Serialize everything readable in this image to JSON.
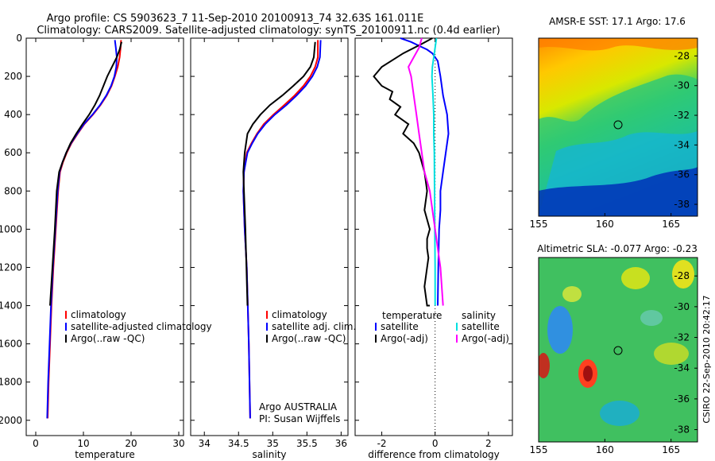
{
  "figure": {
    "title_line1": "Argo profile: CS 5903623_7 11-Sep-2010 20100913_74 32.63S 161.011E",
    "title_line2": "Climatology: CARS2009. Satellite-adjusted climatology: synTS_20100911.nc (0.4d earlier)",
    "credit": "CSIRO 22-Sep-2010 20:42:17",
    "argo_label": "Argo AUSTRALIA",
    "pi_label": "PI: Susan Wijffels"
  },
  "chart_data": [
    {
      "id": "temperature",
      "type": "line",
      "xlabel": "temperature",
      "ylabel": "",
      "xlim": [
        -2,
        31
      ],
      "ylim": [
        2080,
        0
      ],
      "xticks": [
        0,
        10,
        20,
        30
      ],
      "yticks": [
        0,
        200,
        400,
        600,
        800,
        1000,
        1200,
        1400,
        1600,
        1800,
        2000
      ],
      "legend": [
        "climatology",
        "satellite-adjusted climatology",
        "Argo(..raw -QC)"
      ],
      "series": [
        {
          "name": "climatology",
          "color": "#ff0000",
          "x": [
            17.9,
            17.8,
            17.6,
            17.2,
            16.6,
            15.9,
            14.9,
            13.6,
            12.0,
            10.2,
            8.8,
            7.5,
            6.5,
            5.7,
            5.1,
            4.7,
            4.2,
            3.7,
            3.3,
            3.0,
            2.7,
            2.5
          ],
          "y": [
            10,
            50,
            100,
            150,
            200,
            250,
            300,
            350,
            400,
            450,
            500,
            550,
            600,
            650,
            700,
            800,
            1000,
            1200,
            1400,
            1600,
            1800,
            1990
          ]
        },
        {
          "name": "satellite-adjusted climatology",
          "color": "#0000ff",
          "x": [
            16.6,
            16.8,
            17.0,
            16.9,
            16.5,
            15.8,
            14.8,
            13.5,
            11.9,
            10.1,
            8.7,
            7.4,
            6.4,
            5.6,
            5.0,
            4.6,
            4.1,
            3.6,
            3.2,
            2.9,
            2.6,
            2.4
          ],
          "y": [
            10,
            50,
            100,
            150,
            200,
            250,
            300,
            350,
            400,
            450,
            500,
            550,
            600,
            650,
            700,
            800,
            1000,
            1200,
            1400,
            1600,
            1800,
            1990
          ]
        },
        {
          "name": "Argo(..raw -QC)",
          "color": "#000000",
          "x": [
            18.0,
            17.6,
            17.0,
            16.0,
            15.0,
            14.2,
            13.4,
            12.4,
            11.2,
            9.8,
            8.5,
            7.3,
            6.4,
            5.6,
            4.9,
            4.4,
            4.0,
            3.5,
            3.0
          ],
          "y": [
            20,
            60,
            100,
            150,
            200,
            250,
            300,
            350,
            400,
            450,
            500,
            550,
            600,
            650,
            700,
            800,
            1000,
            1200,
            1400
          ]
        }
      ]
    },
    {
      "id": "salinity",
      "type": "line",
      "xlabel": "salinity",
      "ylabel": "",
      "xlim": [
        33.8,
        36.1
      ],
      "ylim": [
        2080,
        0
      ],
      "xticks": [
        34,
        34.5,
        35,
        35.5,
        36
      ],
      "legend": [
        "climatology",
        "satellite adj. clim.",
        "Argo(..raw -QC)"
      ],
      "series": [
        {
          "name": "climatology",
          "color": "#ff0000",
          "x": [
            35.66,
            35.66,
            35.62,
            35.55,
            35.45,
            35.32,
            35.17,
            35.01,
            34.87,
            34.77,
            34.69,
            34.62,
            34.58,
            34.57,
            34.59,
            34.62,
            34.65,
            34.67
          ],
          "y": [
            10,
            100,
            150,
            200,
            250,
            300,
            350,
            400,
            450,
            500,
            550,
            600,
            700,
            800,
            1000,
            1200,
            1600,
            1990
          ]
        },
        {
          "name": "satellite adj. clim.",
          "color": "#0000ff",
          "x": [
            35.7,
            35.69,
            35.65,
            35.58,
            35.48,
            35.35,
            35.2,
            35.03,
            34.89,
            34.78,
            34.7,
            34.63,
            34.58,
            34.57,
            34.59,
            34.62,
            34.65,
            34.67
          ],
          "y": [
            10,
            100,
            150,
            200,
            250,
            300,
            350,
            400,
            450,
            500,
            550,
            600,
            700,
            800,
            1000,
            1200,
            1600,
            1990
          ]
        },
        {
          "name": "Argo(..raw -QC)",
          "color": "#000000",
          "x": [
            35.62,
            35.6,
            35.55,
            35.45,
            35.3,
            35.14,
            34.96,
            34.82,
            34.71,
            34.63,
            34.59,
            34.57,
            34.58,
            34.6,
            34.63
          ],
          "y": [
            20,
            100,
            150,
            200,
            250,
            300,
            350,
            400,
            450,
            500,
            600,
            700,
            800,
            1000,
            1400
          ]
        }
      ]
    },
    {
      "id": "difference",
      "type": "line",
      "xlabel": "difference from climatology",
      "ylabel": "",
      "xlim": [
        -3.0,
        2.9
      ],
      "ylim": [
        2080,
        0
      ],
      "xticks": [
        -2,
        0,
        2
      ],
      "legend_headers": [
        "temperature",
        "salinity"
      ],
      "legend": [
        "satellite",
        "Argo(-adj)",
        "satellite",
        "Argo(-adj)"
      ],
      "series": [
        {
          "name": "temperature satellite",
          "color": "#0000ff",
          "x": [
            -1.3,
            -0.9,
            -0.6,
            -0.3,
            -0.1,
            0.1,
            0.2,
            0.3,
            0.45,
            0.5,
            0.4,
            0.3,
            0.2,
            0.2,
            0.15,
            0.12,
            0.1,
            0.1
          ],
          "y": [
            0,
            20,
            40,
            60,
            80,
            120,
            200,
            300,
            400,
            500,
            600,
            700,
            800,
            900,
            1000,
            1200,
            1400,
            1400
          ]
        },
        {
          "name": "temperature Argo(-adj)",
          "color": "#000000",
          "x": [
            -0.1,
            -0.5,
            -1.2,
            -2.0,
            -2.3,
            -2.0,
            -1.6,
            -1.7,
            -1.3,
            -1.5,
            -1.0,
            -1.2,
            -0.8,
            -0.6,
            -0.5,
            -0.4,
            -0.3,
            -0.4,
            -0.2,
            -0.3,
            -0.3,
            -0.25,
            -0.3,
            -0.4,
            -0.3,
            -0.2
          ],
          "y": [
            0,
            30,
            80,
            150,
            200,
            250,
            280,
            320,
            360,
            400,
            450,
            500,
            550,
            600,
            650,
            700,
            800,
            900,
            1000,
            1050,
            1100,
            1150,
            1200,
            1300,
            1400,
            1400
          ]
        },
        {
          "name": "salinity satellite",
          "color": "#00e0e0",
          "x": [
            0.05,
            0.0,
            -0.05,
            -0.1,
            -0.12,
            -0.08,
            -0.05,
            -0.05,
            -0.03,
            -0.02,
            -0.01,
            0.0,
            0.0
          ],
          "y": [
            0,
            50,
            100,
            150,
            200,
            300,
            400,
            500,
            600,
            800,
            1000,
            1200,
            1400
          ]
        },
        {
          "name": "salinity Argo(-adj)",
          "color": "#ff00ff",
          "x": [
            -0.5,
            -0.6,
            -0.8,
            -1.0,
            -0.9,
            -0.8,
            -0.7,
            -0.6,
            -0.5,
            -0.4,
            -0.2,
            -0.1,
            0.0,
            0.1,
            0.2,
            0.3
          ],
          "y": [
            0,
            50,
            100,
            150,
            200,
            300,
            400,
            500,
            600,
            700,
            800,
            900,
            1000,
            1100,
            1200,
            1400
          ]
        }
      ]
    },
    {
      "id": "sst-map",
      "type": "heatmap",
      "title": "AMSR-E SST: 17.1 Argo: 17.6",
      "xlim": [
        155,
        167
      ],
      "ylim": [
        -38.8,
        -26.8
      ],
      "xticks": [
        155,
        160,
        165
      ],
      "yticks": [
        -28,
        -30,
        -32,
        -34,
        -36,
        -38
      ],
      "marker": {
        "lon": 161.011,
        "lat": -32.63
      }
    },
    {
      "id": "sla-map",
      "type": "heatmap",
      "title": "Altimetric SLA: -0.077 Argo: -0.23",
      "xlim": [
        155,
        167
      ],
      "ylim": [
        -38.8,
        -26.8
      ],
      "xticks": [
        155,
        160,
        165
      ],
      "yticks": [
        -28,
        -30,
        -32,
        -34,
        -36,
        -38
      ],
      "marker": {
        "lon": 161.011,
        "lat": -32.63
      }
    }
  ]
}
